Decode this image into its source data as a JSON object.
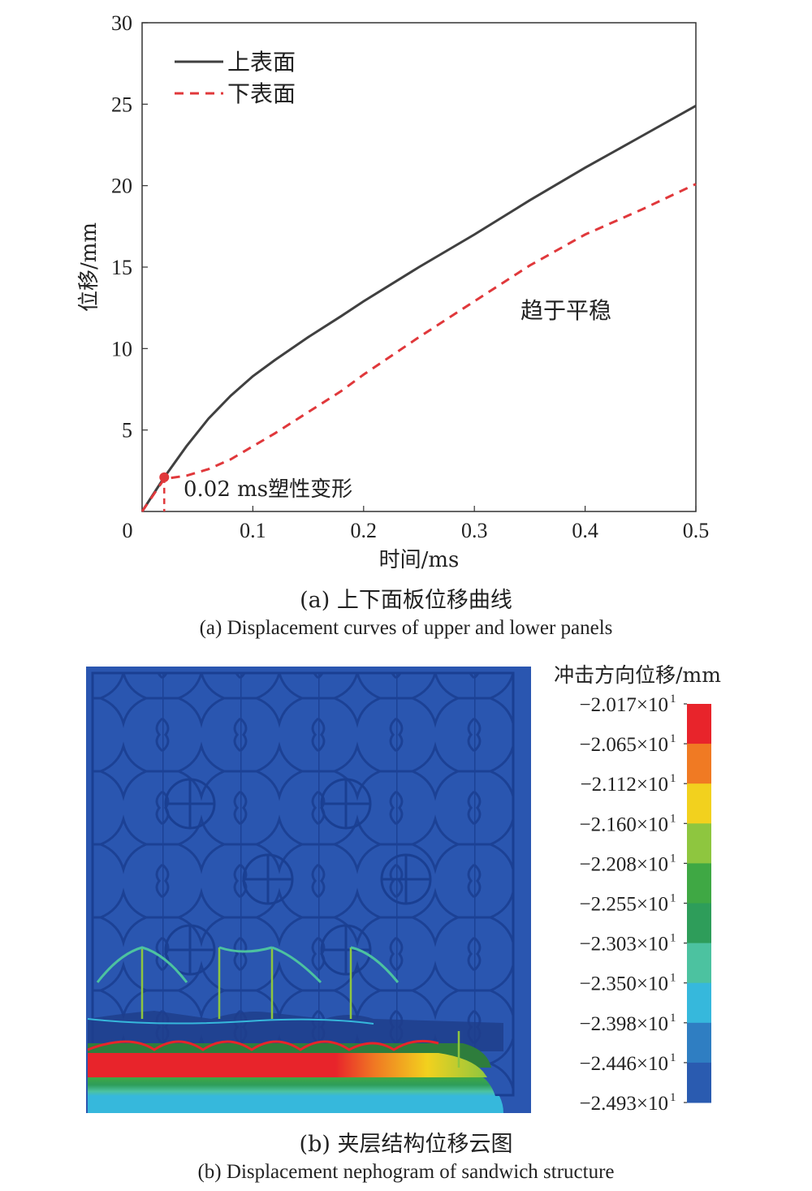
{
  "chart_data": [
    {
      "type": "line",
      "xlabel": "时间/ms",
      "ylabel": "位移/mm",
      "xlim": [
        0,
        0.5
      ],
      "ylim": [
        0,
        30
      ],
      "xticks": [
        "0",
        "0.1",
        "0.2",
        "0.3",
        "0.4",
        "0.5"
      ],
      "yticks": [
        "5",
        "10",
        "15",
        "20",
        "25",
        "30"
      ],
      "legend_position": "top-left",
      "grid": false,
      "series": [
        {
          "name": "上表面",
          "color": "#404040",
          "style": "solid",
          "x": [
            0,
            0.02,
            0.04,
            0.06,
            0.08,
            0.1,
            0.12,
            0.15,
            0.18,
            0.2,
            0.25,
            0.3,
            0.35,
            0.4,
            0.45,
            0.5
          ],
          "y": [
            0,
            2.1,
            4.0,
            5.7,
            7.1,
            8.3,
            9.3,
            10.7,
            12.0,
            12.9,
            15.0,
            17.0,
            19.1,
            21.1,
            23.0,
            24.9
          ]
        },
        {
          "name": "下表面",
          "color": "#e0383b",
          "style": "dashed",
          "x": [
            0,
            0.02,
            0.04,
            0.06,
            0.08,
            0.1,
            0.12,
            0.15,
            0.18,
            0.2,
            0.25,
            0.3,
            0.35,
            0.4,
            0.45,
            0.5
          ],
          "y": [
            0,
            2.0,
            2.2,
            2.6,
            3.2,
            4.0,
            4.8,
            6.1,
            7.4,
            8.4,
            10.7,
            12.9,
            15.1,
            17.0,
            18.5,
            20.1
          ]
        }
      ],
      "annotations": [
        {
          "text": "0.02 ms塑性变形",
          "x": 0.02,
          "y": 2.1,
          "color": "#e0383b"
        },
        {
          "text": "趋于平稳"
        }
      ]
    },
    {
      "type": "heatmap",
      "title": "冲击方向位移/mm",
      "colorbar_ticks": [
        "−2.017×10",
        "−2.065×10",
        "−2.112×10",
        "−2.160×10",
        "−2.208×10",
        "−2.255×10",
        "−2.303×10",
        "−2.350×10",
        "−2.398×10",
        "−2.446×10",
        "−2.493×10"
      ],
      "colorbar_exponent": "1",
      "colorbar_colors": [
        "#e8242b",
        "#f07a23",
        "#f2d11e",
        "#8ec63f",
        "#3fa844",
        "#2e9d5a",
        "#4cc2a0",
        "#36b8dc",
        "#2f7ec2",
        "#2a5bb0"
      ]
    }
  ],
  "captions": {
    "a_cn": "(a) 上下面板位移曲线",
    "a_en": "(a) Displacement curves of upper and lower panels",
    "b_cn": "(b) 夹层结构位移云图",
    "b_en": "(b) Displacement nephogram of sandwich structure"
  }
}
